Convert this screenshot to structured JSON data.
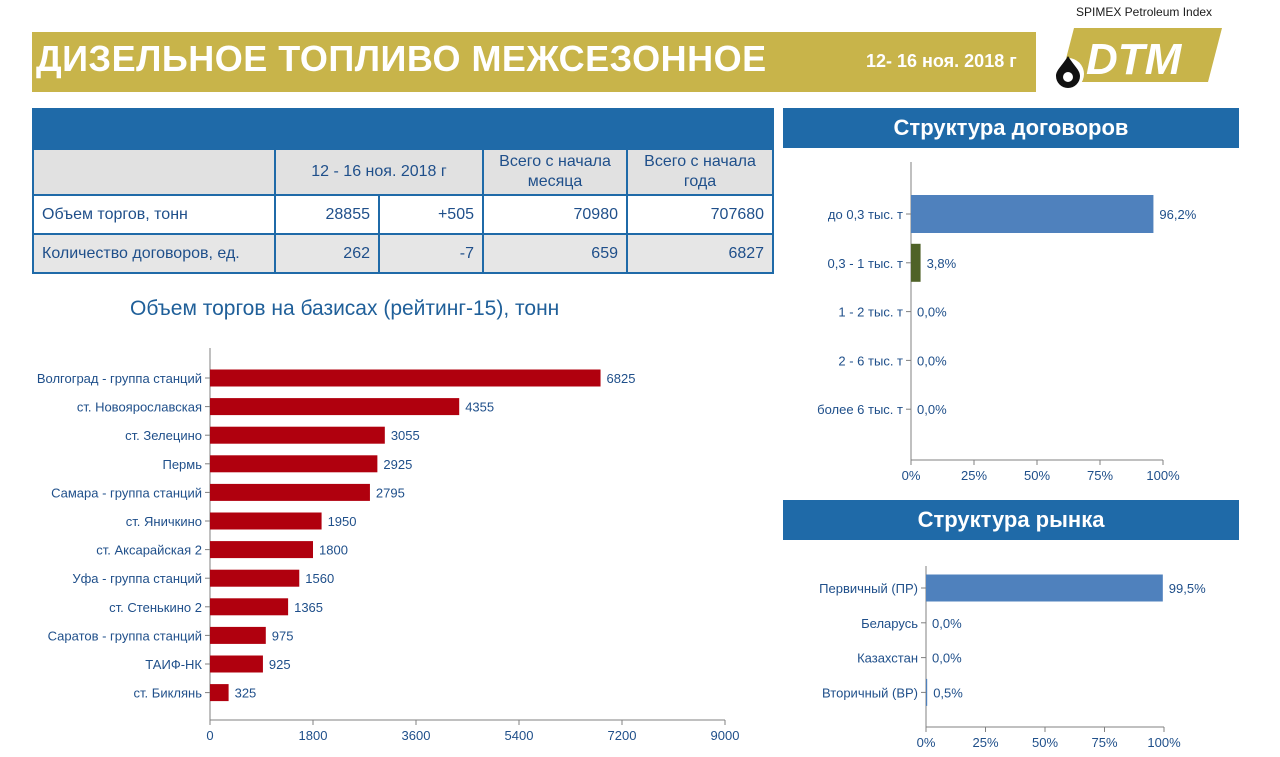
{
  "header": {
    "title": "ДИЗЕЛЬНОЕ ТОПЛИВО МЕЖСЕЗОННОЕ",
    "date": "12- 16 ноя. 2018 г",
    "brand": "SPIMEX Petroleum Index",
    "logo_text": "DTM"
  },
  "colors": {
    "gold": "#c8b44a",
    "blue": "#1f6aa8",
    "text_blue": "#1f5f99",
    "bar_red": "#b0000e",
    "bar_blue": "#4f81bd",
    "bar_green": "#4f6228"
  },
  "stats_table": {
    "col_period": "12 - 16 ноя. 2018 г",
    "col_month": "Всего с начала месяца",
    "col_year": "Всего с начала года",
    "rows": [
      {
        "label": "Объем торгов, тонн",
        "value": "28855",
        "change": "+505",
        "month": "70980",
        "year": "707680"
      },
      {
        "label": "Количество договоров, ед.",
        "value": "262",
        "change": "-7",
        "month": "659",
        "year": "6827"
      }
    ]
  },
  "panels": {
    "contracts_title": "Структура договоров",
    "market_title": "Структура рынка"
  },
  "chart_data": [
    {
      "type": "bar",
      "orientation": "horizontal",
      "title": "Объем торгов на базисах (рейтинг-15), тонн",
      "categories": [
        "Волгоград - группа станций",
        "ст. Новоярославская",
        "ст. Зелецино",
        "Пермь",
        "Самара - группа станций",
        "ст. Яничкино",
        "ст. Аксарайская 2",
        "Уфа - группа станций",
        "ст. Стенькино 2",
        "Саратов - группа станций",
        "ТАИФ-НК",
        "ст. Биклянь"
      ],
      "values": [
        6825,
        4355,
        3055,
        2925,
        2795,
        1950,
        1800,
        1560,
        1365,
        975,
        925,
        325
      ],
      "data_labels": [
        "6825",
        "4355",
        "3055",
        "2925",
        "2795",
        "1950",
        "1800",
        "1560",
        "1365",
        "975",
        "925",
        "325"
      ],
      "xlim": [
        0,
        9000
      ],
      "x_ticks": [
        "0",
        "1800",
        "3600",
        "5400",
        "7200",
        "9000"
      ],
      "color": "#b0000e"
    },
    {
      "type": "bar",
      "orientation": "horizontal",
      "title": "Структура договоров",
      "categories": [
        "до 0,3 тыс. т",
        "0,3 - 1 тыс. т",
        "1 - 2 тыс. т",
        "2 - 6 тыс. т",
        "более 6 тыс. т"
      ],
      "values": [
        96.2,
        3.8,
        0.0,
        0.0,
        0.0
      ],
      "data_labels": [
        "96,2%",
        "3,8%",
        "0,0%",
        "0,0%",
        "0,0%"
      ],
      "colors": [
        "#4f81bd",
        "#4f6228",
        "#4f81bd",
        "#4f81bd",
        "#4f81bd"
      ],
      "xlim": [
        0,
        100
      ],
      "x_ticks": [
        "0%",
        "25%",
        "50%",
        "75%",
        "100%"
      ]
    },
    {
      "type": "bar",
      "orientation": "horizontal",
      "title": "Структура рынка",
      "categories": [
        "Первичный (ПР)",
        "Беларусь",
        "Казахстан",
        "Вторичный (ВР)"
      ],
      "values": [
        99.5,
        0.0,
        0.0,
        0.5
      ],
      "data_labels": [
        "99,5%",
        "0,0%",
        "0,0%",
        "0,5%"
      ],
      "colors": [
        "#4f81bd",
        "#4f81bd",
        "#4f81bd",
        "#4f81bd"
      ],
      "xlim": [
        0,
        100
      ],
      "x_ticks": [
        "0%",
        "25%",
        "50%",
        "75%",
        "100%"
      ]
    }
  ]
}
